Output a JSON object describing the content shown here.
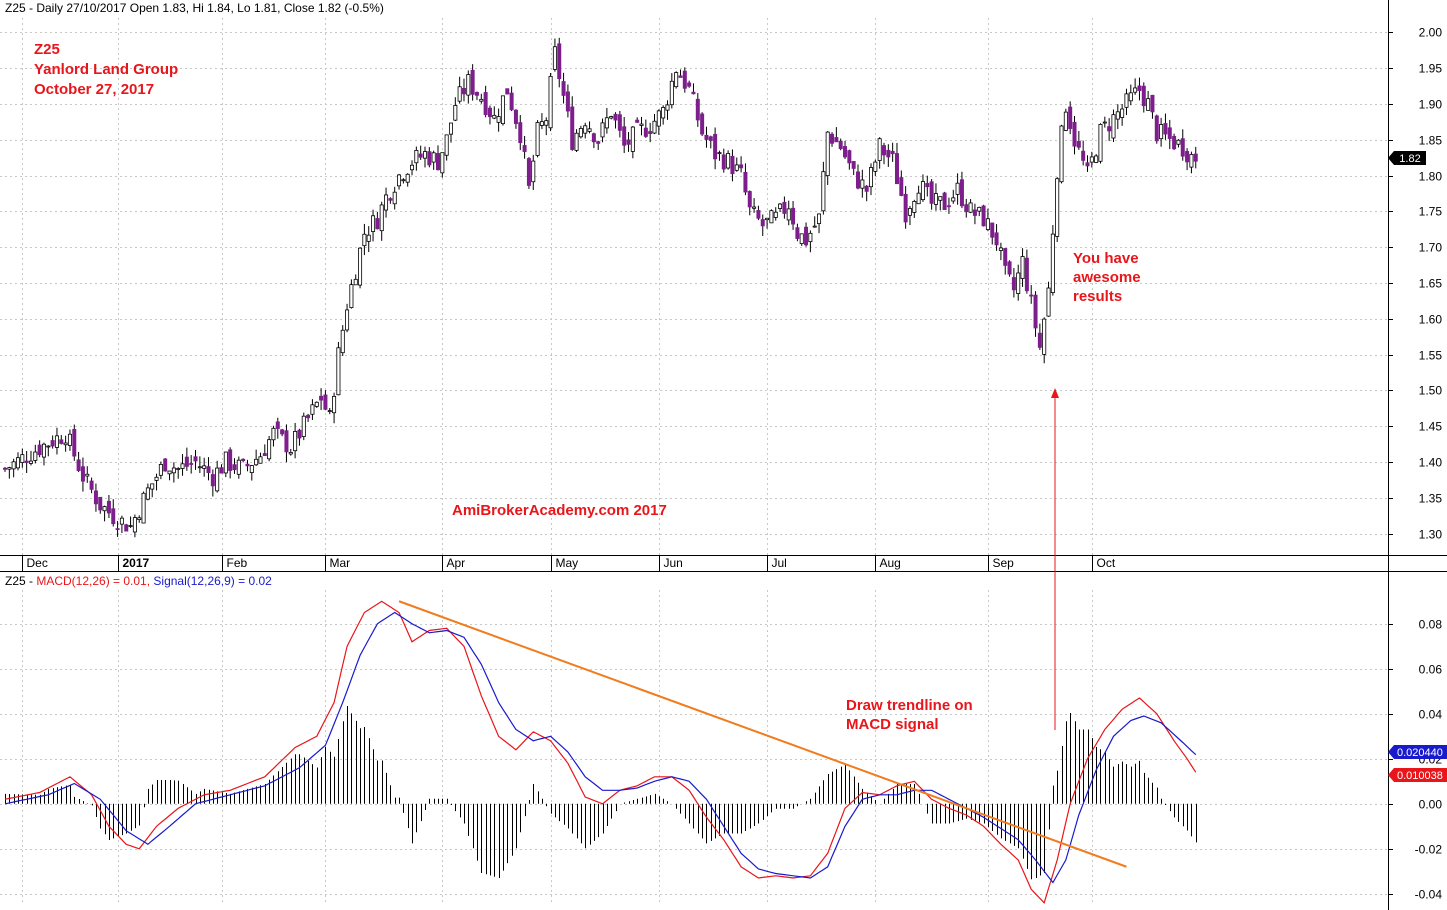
{
  "header": {
    "price": {
      "prefix": "Z25 - Daily 27/10/2017 Open 1.83, Hi 1.84, Lo 1.81, Close 1.82 (-0.5%)"
    },
    "macd": {
      "prefix": "Z25 - ",
      "macd_label": "MACD(12,26) = 0.01,",
      "signal_label": "Signal(12,26,9) = 0.02"
    }
  },
  "annotations": {
    "title_lines": [
      "Z25",
      "Yanlord Land Group",
      "October 27, 2017"
    ],
    "watermark": "AmiBrokerAcademy.com  2017",
    "results_lines": [
      "You have",
      "awesome",
      "results"
    ],
    "trendline_lines": [
      "Draw trendline on",
      "MACD signal"
    ]
  },
  "labels": {
    "last_price": "1.82",
    "signal_value": "0.020440",
    "macd_value": "0.010038"
  },
  "colors": {
    "bull_candle": "#ffffff",
    "bear_candle": "#7d1e8c",
    "macd_line": "#e8161b",
    "signal_line": "#1a1acd",
    "histogram": "#000000",
    "trendline": "#f07c1e",
    "annotation": "#e8161b"
  },
  "chart_data": [
    {
      "type": "candlestick",
      "title": "",
      "x_labels": [
        "Dec",
        "2017",
        "Feb",
        "Mar",
        "Apr",
        "May",
        "Jun",
        "Jul",
        "Aug",
        "Sep",
        "Oct"
      ],
      "ylim": [
        1.27,
        2.02
      ],
      "y_ticks": [
        "1.30",
        "1.35",
        "1.40",
        "1.45",
        "1.50",
        "1.55",
        "1.60",
        "1.65",
        "1.70",
        "1.75",
        "1.80",
        "1.85",
        "1.90",
        "1.95",
        "2.00"
      ],
      "grid": true,
      "last": {
        "open": 1.83,
        "high": 1.84,
        "low": 1.81,
        "close": 1.82
      },
      "close_path": [
        [
          0,
          1.39
        ],
        [
          8,
          1.42
        ],
        [
          14,
          1.44
        ],
        [
          18,
          1.38
        ],
        [
          22,
          1.34
        ],
        [
          26,
          1.32
        ],
        [
          29,
          1.31
        ],
        [
          33,
          1.36
        ],
        [
          37,
          1.4
        ],
        [
          40,
          1.39
        ],
        [
          44,
          1.4
        ],
        [
          48,
          1.38
        ],
        [
          51,
          1.4
        ],
        [
          55,
          1.39
        ],
        [
          59,
          1.41
        ],
        [
          62,
          1.44
        ],
        [
          66,
          1.42
        ],
        [
          70,
          1.46
        ],
        [
          73,
          1.49
        ],
        [
          75,
          1.46
        ],
        [
          77,
          1.55
        ],
        [
          79,
          1.62
        ],
        [
          81,
          1.67
        ],
        [
          83,
          1.72
        ],
        [
          86,
          1.74
        ],
        [
          88,
          1.77
        ],
        [
          91,
          1.8
        ],
        [
          94,
          1.82
        ],
        [
          97,
          1.83
        ],
        [
          100,
          1.82
        ],
        [
          102,
          1.85
        ],
        [
          104,
          1.9
        ],
        [
          107,
          1.93
        ],
        [
          110,
          1.91
        ],
        [
          113,
          1.88
        ],
        [
          116,
          1.92
        ],
        [
          119,
          1.86
        ],
        [
          121,
          1.78
        ],
        [
          123,
          1.86
        ],
        [
          125,
          1.88
        ],
        [
          127,
          1.97
        ],
        [
          129,
          1.91
        ],
        [
          131,
          1.85
        ],
        [
          134,
          1.88
        ],
        [
          137,
          1.85
        ],
        [
          140,
          1.89
        ],
        [
          143,
          1.84
        ],
        [
          146,
          1.86
        ],
        [
          149,
          1.87
        ],
        [
          152,
          1.89
        ],
        [
          155,
          1.95
        ],
        [
          158,
          1.92
        ],
        [
          161,
          1.86
        ],
        [
          164,
          1.83
        ],
        [
          167,
          1.82
        ],
        [
          170,
          1.8
        ],
        [
          172,
          1.75
        ],
        [
          175,
          1.73
        ],
        [
          178,
          1.74
        ],
        [
          181,
          1.76
        ],
        [
          183,
          1.72
        ],
        [
          185,
          1.71
        ],
        [
          188,
          1.74
        ],
        [
          190,
          1.86
        ],
        [
          193,
          1.84
        ],
        [
          196,
          1.8
        ],
        [
          199,
          1.78
        ],
        [
          202,
          1.84
        ],
        [
          205,
          1.82
        ],
        [
          208,
          1.75
        ],
        [
          211,
          1.79
        ],
        [
          214,
          1.76
        ],
        [
          217,
          1.76
        ],
        [
          220,
          1.78
        ],
        [
          223,
          1.75
        ],
        [
          226,
          1.74
        ],
        [
          229,
          1.71
        ],
        [
          231,
          1.66
        ],
        [
          233,
          1.64
        ],
        [
          235,
          1.68
        ],
        [
          237,
          1.62
        ],
        [
          239,
          1.56
        ],
        [
          241,
          1.64
        ],
        [
          243,
          1.81
        ],
        [
          245,
          1.9
        ],
        [
          247,
          1.85
        ],
        [
          250,
          1.8
        ],
        [
          253,
          1.86
        ],
        [
          256,
          1.88
        ],
        [
          259,
          1.9
        ],
        [
          262,
          1.92
        ],
        [
          264,
          1.9
        ],
        [
          266,
          1.86
        ],
        [
          269,
          1.85
        ],
        [
          272,
          1.84
        ],
        [
          275,
          1.82
        ]
      ]
    },
    {
      "type": "line",
      "title": "",
      "ylim": [
        -0.045,
        0.095
      ],
      "y_ticks": [
        "-0.04",
        "-0.02",
        "0.00",
        "0.02",
        "0.04",
        "0.06",
        "0.08"
      ],
      "grid": true,
      "series": [
        {
          "name": "MACD(12,26)",
          "color": "#e8161b",
          "points": [
            [
              0,
              0.002
            ],
            [
              8,
              0.005
            ],
            [
              15,
              0.012
            ],
            [
              20,
              0.004
            ],
            [
              24,
              -0.01
            ],
            [
              28,
              -0.018
            ],
            [
              31,
              -0.02
            ],
            [
              35,
              -0.01
            ],
            [
              40,
              -0.002
            ],
            [
              46,
              0.004
            ],
            [
              52,
              0.006
            ],
            [
              60,
              0.012
            ],
            [
              67,
              0.025
            ],
            [
              72,
              0.03
            ],
            [
              76,
              0.045
            ],
            [
              79,
              0.07
            ],
            [
              83,
              0.085
            ],
            [
              87,
              0.09
            ],
            [
              91,
              0.085
            ],
            [
              94,
              0.072
            ],
            [
              98,
              0.077
            ],
            [
              102,
              0.078
            ],
            [
              106,
              0.07
            ],
            [
              110,
              0.048
            ],
            [
              114,
              0.03
            ],
            [
              118,
              0.024
            ],
            [
              122,
              0.032
            ],
            [
              126,
              0.028
            ],
            [
              130,
              0.018
            ],
            [
              134,
              0.003
            ],
            [
              138,
              0.0
            ],
            [
              142,
              0.006
            ],
            [
              146,
              0.008
            ],
            [
              150,
              0.012
            ],
            [
              154,
              0.012
            ],
            [
              158,
              0.006
            ],
            [
              162,
              -0.006
            ],
            [
              166,
              -0.016
            ],
            [
              170,
              -0.028
            ],
            [
              174,
              -0.033
            ],
            [
              178,
              -0.032
            ],
            [
              182,
              -0.033
            ],
            [
              186,
              -0.032
            ],
            [
              190,
              -0.022
            ],
            [
              194,
              -0.002
            ],
            [
              198,
              0.005
            ],
            [
              202,
              0.004
            ],
            [
              206,
              0.008
            ],
            [
              210,
              0.01
            ],
            [
              214,
              0.002
            ],
            [
              218,
              -0.002
            ],
            [
              222,
              -0.005
            ],
            [
              226,
              -0.01
            ],
            [
              230,
              -0.018
            ],
            [
              234,
              -0.025
            ],
            [
              237,
              -0.038
            ],
            [
              240,
              -0.044
            ],
            [
              243,
              -0.025
            ],
            [
              246,
              0.0
            ],
            [
              250,
              0.02
            ],
            [
              254,
              0.033
            ],
            [
              258,
              0.042
            ],
            [
              262,
              0.047
            ],
            [
              266,
              0.04
            ],
            [
              270,
              0.028
            ],
            [
              273,
              0.02
            ],
            [
              276,
              0.011
            ]
          ]
        },
        {
          "name": "Signal(12,26,9)",
          "color": "#1a1acd",
          "points": [
            [
              0,
              0.0
            ],
            [
              10,
              0.004
            ],
            [
              16,
              0.009
            ],
            [
              22,
              0.002
            ],
            [
              28,
              -0.012
            ],
            [
              33,
              -0.018
            ],
            [
              38,
              -0.01
            ],
            [
              44,
              0.0
            ],
            [
              52,
              0.004
            ],
            [
              60,
              0.008
            ],
            [
              68,
              0.016
            ],
            [
              74,
              0.026
            ],
            [
              78,
              0.045
            ],
            [
              82,
              0.066
            ],
            [
              86,
              0.08
            ],
            [
              90,
              0.085
            ],
            [
              94,
              0.08
            ],
            [
              98,
              0.076
            ],
            [
              102,
              0.077
            ],
            [
              106,
              0.074
            ],
            [
              110,
              0.062
            ],
            [
              114,
              0.045
            ],
            [
              118,
              0.033
            ],
            [
              122,
              0.028
            ],
            [
              126,
              0.03
            ],
            [
              130,
              0.023
            ],
            [
              134,
              0.012
            ],
            [
              138,
              0.006
            ],
            [
              142,
              0.006
            ],
            [
              146,
              0.007
            ],
            [
              150,
              0.01
            ],
            [
              154,
              0.012
            ],
            [
              158,
              0.01
            ],
            [
              162,
              0.002
            ],
            [
              166,
              -0.01
            ],
            [
              170,
              -0.022
            ],
            [
              174,
              -0.029
            ],
            [
              178,
              -0.031
            ],
            [
              182,
              -0.032
            ],
            [
              186,
              -0.033
            ],
            [
              190,
              -0.028
            ],
            [
              194,
              -0.01
            ],
            [
              198,
              0.002
            ],
            [
              202,
              0.004
            ],
            [
              206,
              0.004
            ],
            [
              210,
              0.006
            ],
            [
              214,
              0.006
            ],
            [
              218,
              0.002
            ],
            [
              222,
              -0.002
            ],
            [
              226,
              -0.006
            ],
            [
              230,
              -0.011
            ],
            [
              234,
              -0.016
            ],
            [
              238,
              -0.025
            ],
            [
              242,
              -0.035
            ],
            [
              245,
              -0.025
            ],
            [
              248,
              -0.005
            ],
            [
              252,
              0.015
            ],
            [
              256,
              0.03
            ],
            [
              260,
              0.037
            ],
            [
              263,
              0.039
            ],
            [
              267,
              0.036
            ],
            [
              271,
              0.029
            ],
            [
              276,
              0.02
            ]
          ]
        }
      ],
      "trendline": {
        "start": [
          91,
          0.09
        ],
        "end": [
          259,
          -0.028
        ]
      }
    }
  ]
}
